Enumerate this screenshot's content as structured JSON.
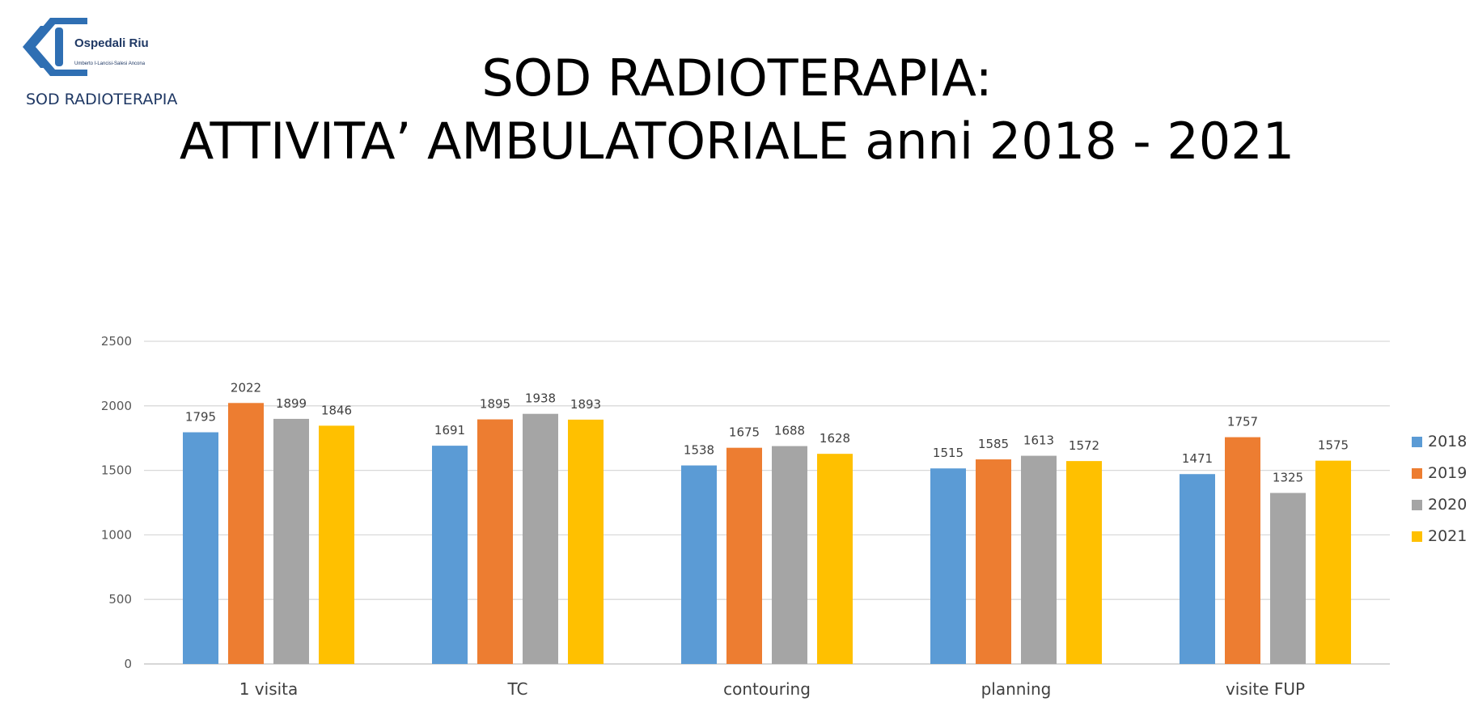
{
  "header": {
    "logo_name": "Ospedali Riuniti",
    "logo_subtitle": "Umberto I-Lancisi-Salesi Ancona",
    "department": "SOD RADIOTERAPIA"
  },
  "title_line1": "SOD RADIOTERAPIA:",
  "title_line2": "ATTIVITA’ AMBULATORIALE  anni 2018 - 2021",
  "chart_data": {
    "type": "bar",
    "title": "SOD RADIOTERAPIA: ATTIVITA’ AMBULATORIALE anni 2018 - 2021",
    "categories": [
      "1 visita",
      "TC",
      "contouring",
      "planning",
      "visite FUP"
    ],
    "series": [
      {
        "name": "2018",
        "color": "#5b9bd5",
        "values": [
          1795,
          1691,
          1538,
          1515,
          1471
        ]
      },
      {
        "name": "2019",
        "color": "#ed7d31",
        "values": [
          2022,
          1895,
          1675,
          1585,
          1757
        ]
      },
      {
        "name": "2020",
        "color": "#a5a5a5",
        "values": [
          1899,
          1938,
          1688,
          1613,
          1325
        ]
      },
      {
        "name": "2021",
        "color": "#ffc000",
        "values": [
          1846,
          1893,
          1628,
          1572,
          1575
        ]
      }
    ],
    "yticks": [
      0,
      500,
      1000,
      1500,
      2000,
      2500
    ],
    "ylim": [
      0,
      2500
    ],
    "xlabel": "",
    "ylabel": "",
    "grid": true,
    "legend_position": "right",
    "data_labels": true
  }
}
